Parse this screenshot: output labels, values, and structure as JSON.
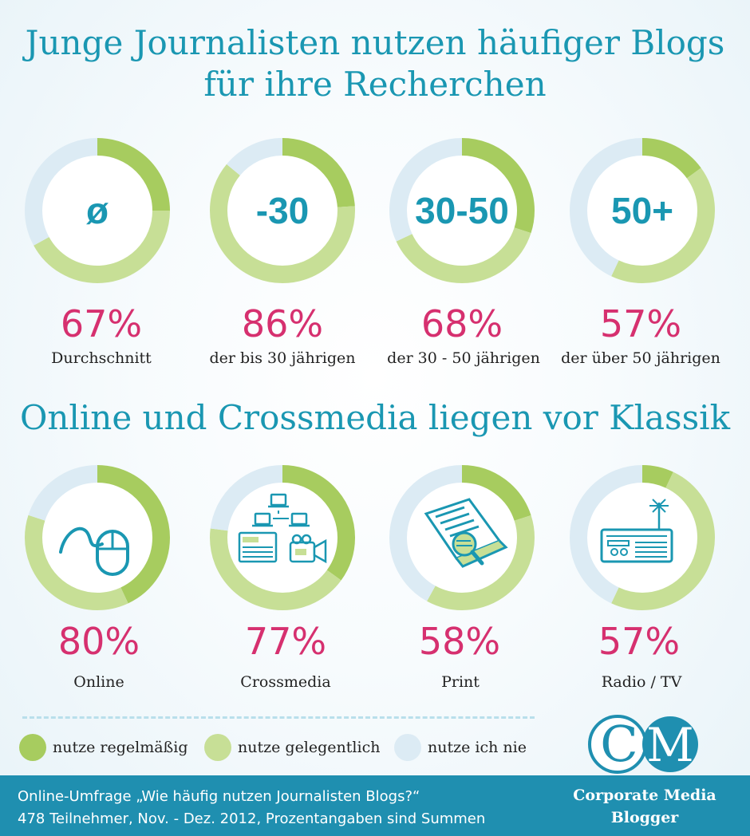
{
  "title1": "Junge Journalisten nutzen häufiger Blogs",
  "title1b": "für ihre Recherchen",
  "title2": "Online und Crossmedia liegen vor Klassik",
  "colors": {
    "regular": "#a7cc5f",
    "occasional": "#c7df96",
    "never": "#dcebf4",
    "accent": "#1a97b2",
    "percent": "#d6306f",
    "footer": "#1f8fb0"
  },
  "legend": [
    {
      "label": "nutze regelmäßig",
      "color": "#a7cc5f"
    },
    {
      "label": "nutze gelegentlich",
      "color": "#c7df96"
    },
    {
      "label": "nutze ich nie",
      "color": "#dcebf4"
    }
  ],
  "chart_data": [
    {
      "type": "pie",
      "variant": "donut",
      "title": "Junge Journalisten nutzen häufiger Blogs für ihre Recherchen",
      "series_names": [
        "nutze regelmäßig",
        "nutze gelegentlich",
        "nutze ich nie"
      ],
      "items": [
        {
          "center": "ø",
          "percent": "67%",
          "caption": "Durchschnitt",
          "values": [
            25,
            42,
            33
          ]
        },
        {
          "center": "-30",
          "percent": "86%",
          "caption": "der bis 30 jährigen",
          "values": [
            24,
            62,
            14
          ]
        },
        {
          "center": "30-50",
          "percent": "68%",
          "caption": "der 30 - 50 jährigen",
          "values": [
            30,
            38,
            32
          ]
        },
        {
          "center": "50+",
          "percent": "57%",
          "caption": "der über 50 jährigen",
          "values": [
            15,
            42,
            43
          ]
        }
      ]
    },
    {
      "type": "pie",
      "variant": "donut",
      "title": "Online und Crossmedia liegen vor Klassik",
      "series_names": [
        "nutze regelmäßig",
        "nutze gelegentlich",
        "nutze ich nie"
      ],
      "items": [
        {
          "icon": "mouse-icon",
          "percent": "80%",
          "caption": "Online",
          "values": [
            43,
            37,
            20
          ]
        },
        {
          "icon": "network-media-icon",
          "percent": "77%",
          "caption": "Crossmedia",
          "values": [
            35,
            42,
            23
          ]
        },
        {
          "icon": "newspaper-icon",
          "percent": "58%",
          "caption": "Print",
          "values": [
            20,
            38,
            42
          ]
        },
        {
          "icon": "radio-icon",
          "percent": "57%",
          "caption": "Radio / TV",
          "values": [
            7,
            50,
            43
          ]
        }
      ]
    }
  ],
  "footer": {
    "line1": "Online-Umfrage „Wie häufig nutzen Journalisten Blogs?“",
    "line2": "478 Teilnehmer, Nov. - Dez. 2012, Prozentangaben sind Summen"
  },
  "brand": {
    "logo_letters": "CM",
    "name_line1": "Corporate Media",
    "name_line2": "Blogger"
  }
}
